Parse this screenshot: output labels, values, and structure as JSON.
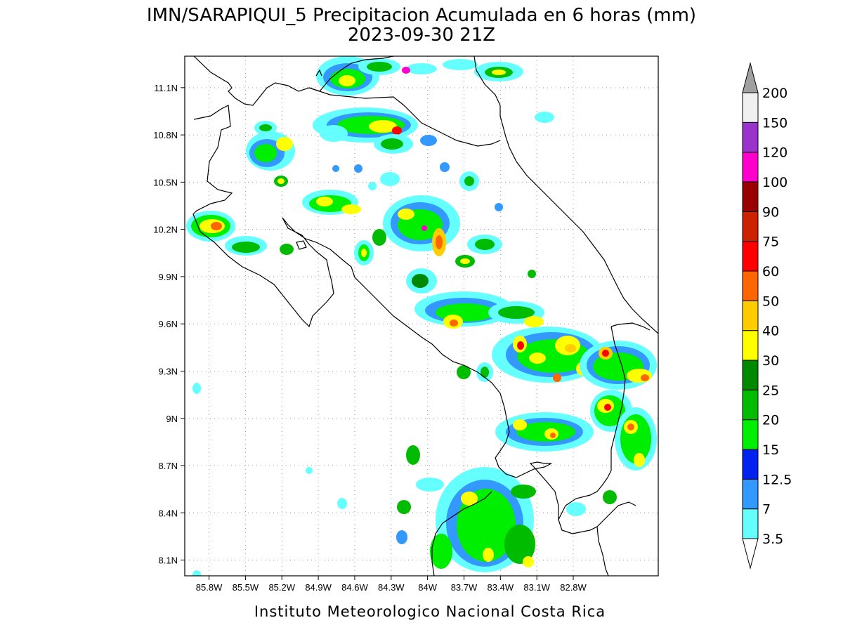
{
  "header": {
    "title_line1": "IMN/SARAPIQUI_5 Precipitacion Acumulada en 6 horas (mm)",
    "title_line2": "2023-09-30 21Z"
  },
  "footer": {
    "credit": "Instituto Meteorologico Nacional Costa Rica"
  },
  "map": {
    "lon_range": [
      -86.0,
      -82.1
    ],
    "lat_range": [
      8.0,
      11.3
    ],
    "lon_ticks": [
      "85.8W",
      "85.5W",
      "85.2W",
      "84.9W",
      "84.6W",
      "84.3W",
      "84W",
      "83.7W",
      "83.4W",
      "83.1W",
      "82.8W"
    ],
    "lat_ticks": [
      "11.1N",
      "10.8N",
      "10.5N",
      "10.2N",
      "9.9N",
      "9.6N",
      "9.3N",
      "9N",
      "8.7N",
      "8.4N",
      "8.1N"
    ],
    "grid": true
  },
  "colorbar": {
    "labels": [
      "3.5",
      "7",
      "12.5",
      "15",
      "20",
      "25",
      "30",
      "40",
      "50",
      "60",
      "75",
      "90",
      "100",
      "120",
      "150",
      "200"
    ],
    "colors": [
      "#ffffff",
      "#66ffff",
      "#3399ff",
      "#0022ee",
      "#00ee00",
      "#00bb00",
      "#008800",
      "#ffff00",
      "#ffcc00",
      "#ff6600",
      "#ff0000",
      "#cc2200",
      "#990000",
      "#ff00cc",
      "#9933cc",
      "#f0f0f0",
      "#a0a0a0"
    ]
  }
}
